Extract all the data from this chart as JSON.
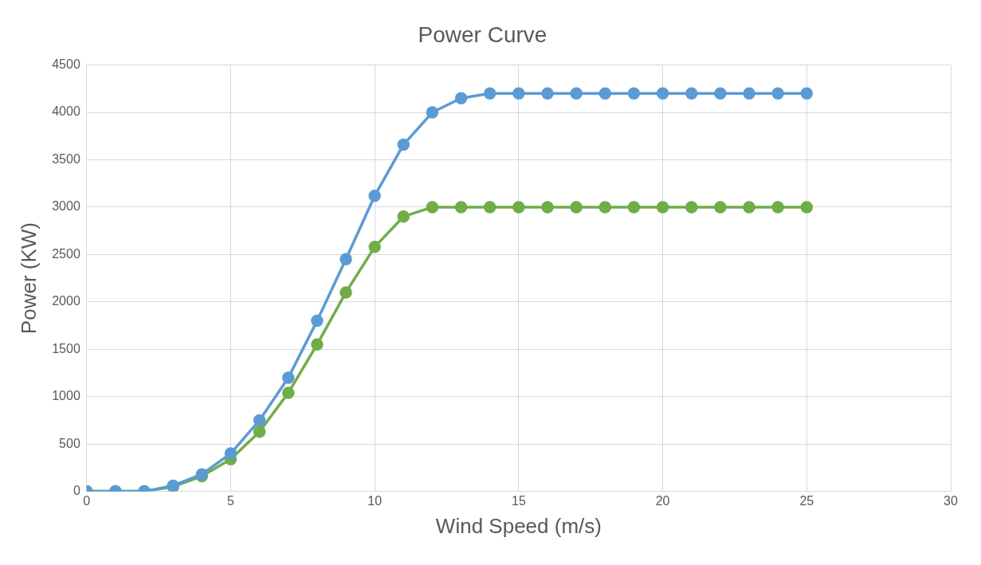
{
  "chart_data": {
    "type": "line",
    "title": "Power Curve",
    "xlabel": "Wind Speed (m/s)",
    "ylabel": "Power (KW)",
    "x": [
      0,
      1,
      2,
      3,
      4,
      5,
      6,
      7,
      8,
      9,
      10,
      11,
      12,
      13,
      14,
      15,
      16,
      17,
      18,
      19,
      20,
      21,
      22,
      23,
      24,
      25
    ],
    "series": [
      {
        "color": "#70ad47",
        "values": [
          0,
          0,
          0,
          50,
          160,
          340,
          630,
          1040,
          1550,
          2100,
          2580,
          2900,
          3000,
          3000,
          3000,
          3000,
          3000,
          3000,
          3000,
          3000,
          3000,
          3000,
          3000,
          3000,
          3000,
          3000
        ]
      },
      {
        "color": "#5b9bd5",
        "values": [
          0,
          0,
          0,
          60,
          180,
          400,
          750,
          1200,
          1800,
          2450,
          3120,
          3660,
          4000,
          4150,
          4200,
          4200,
          4200,
          4200,
          4200,
          4200,
          4200,
          4200,
          4200,
          4200,
          4200,
          4200
        ]
      }
    ],
    "xlim": [
      0,
      30
    ],
    "xticks": [
      0,
      5,
      10,
      15,
      20,
      25,
      30
    ],
    "ylim": [
      0,
      4500
    ],
    "yticks": [
      0,
      500,
      1000,
      1500,
      2000,
      2500,
      3000,
      3500,
      4000,
      4500
    ],
    "grid": true,
    "marker": "circle",
    "line_style": "solid"
  }
}
